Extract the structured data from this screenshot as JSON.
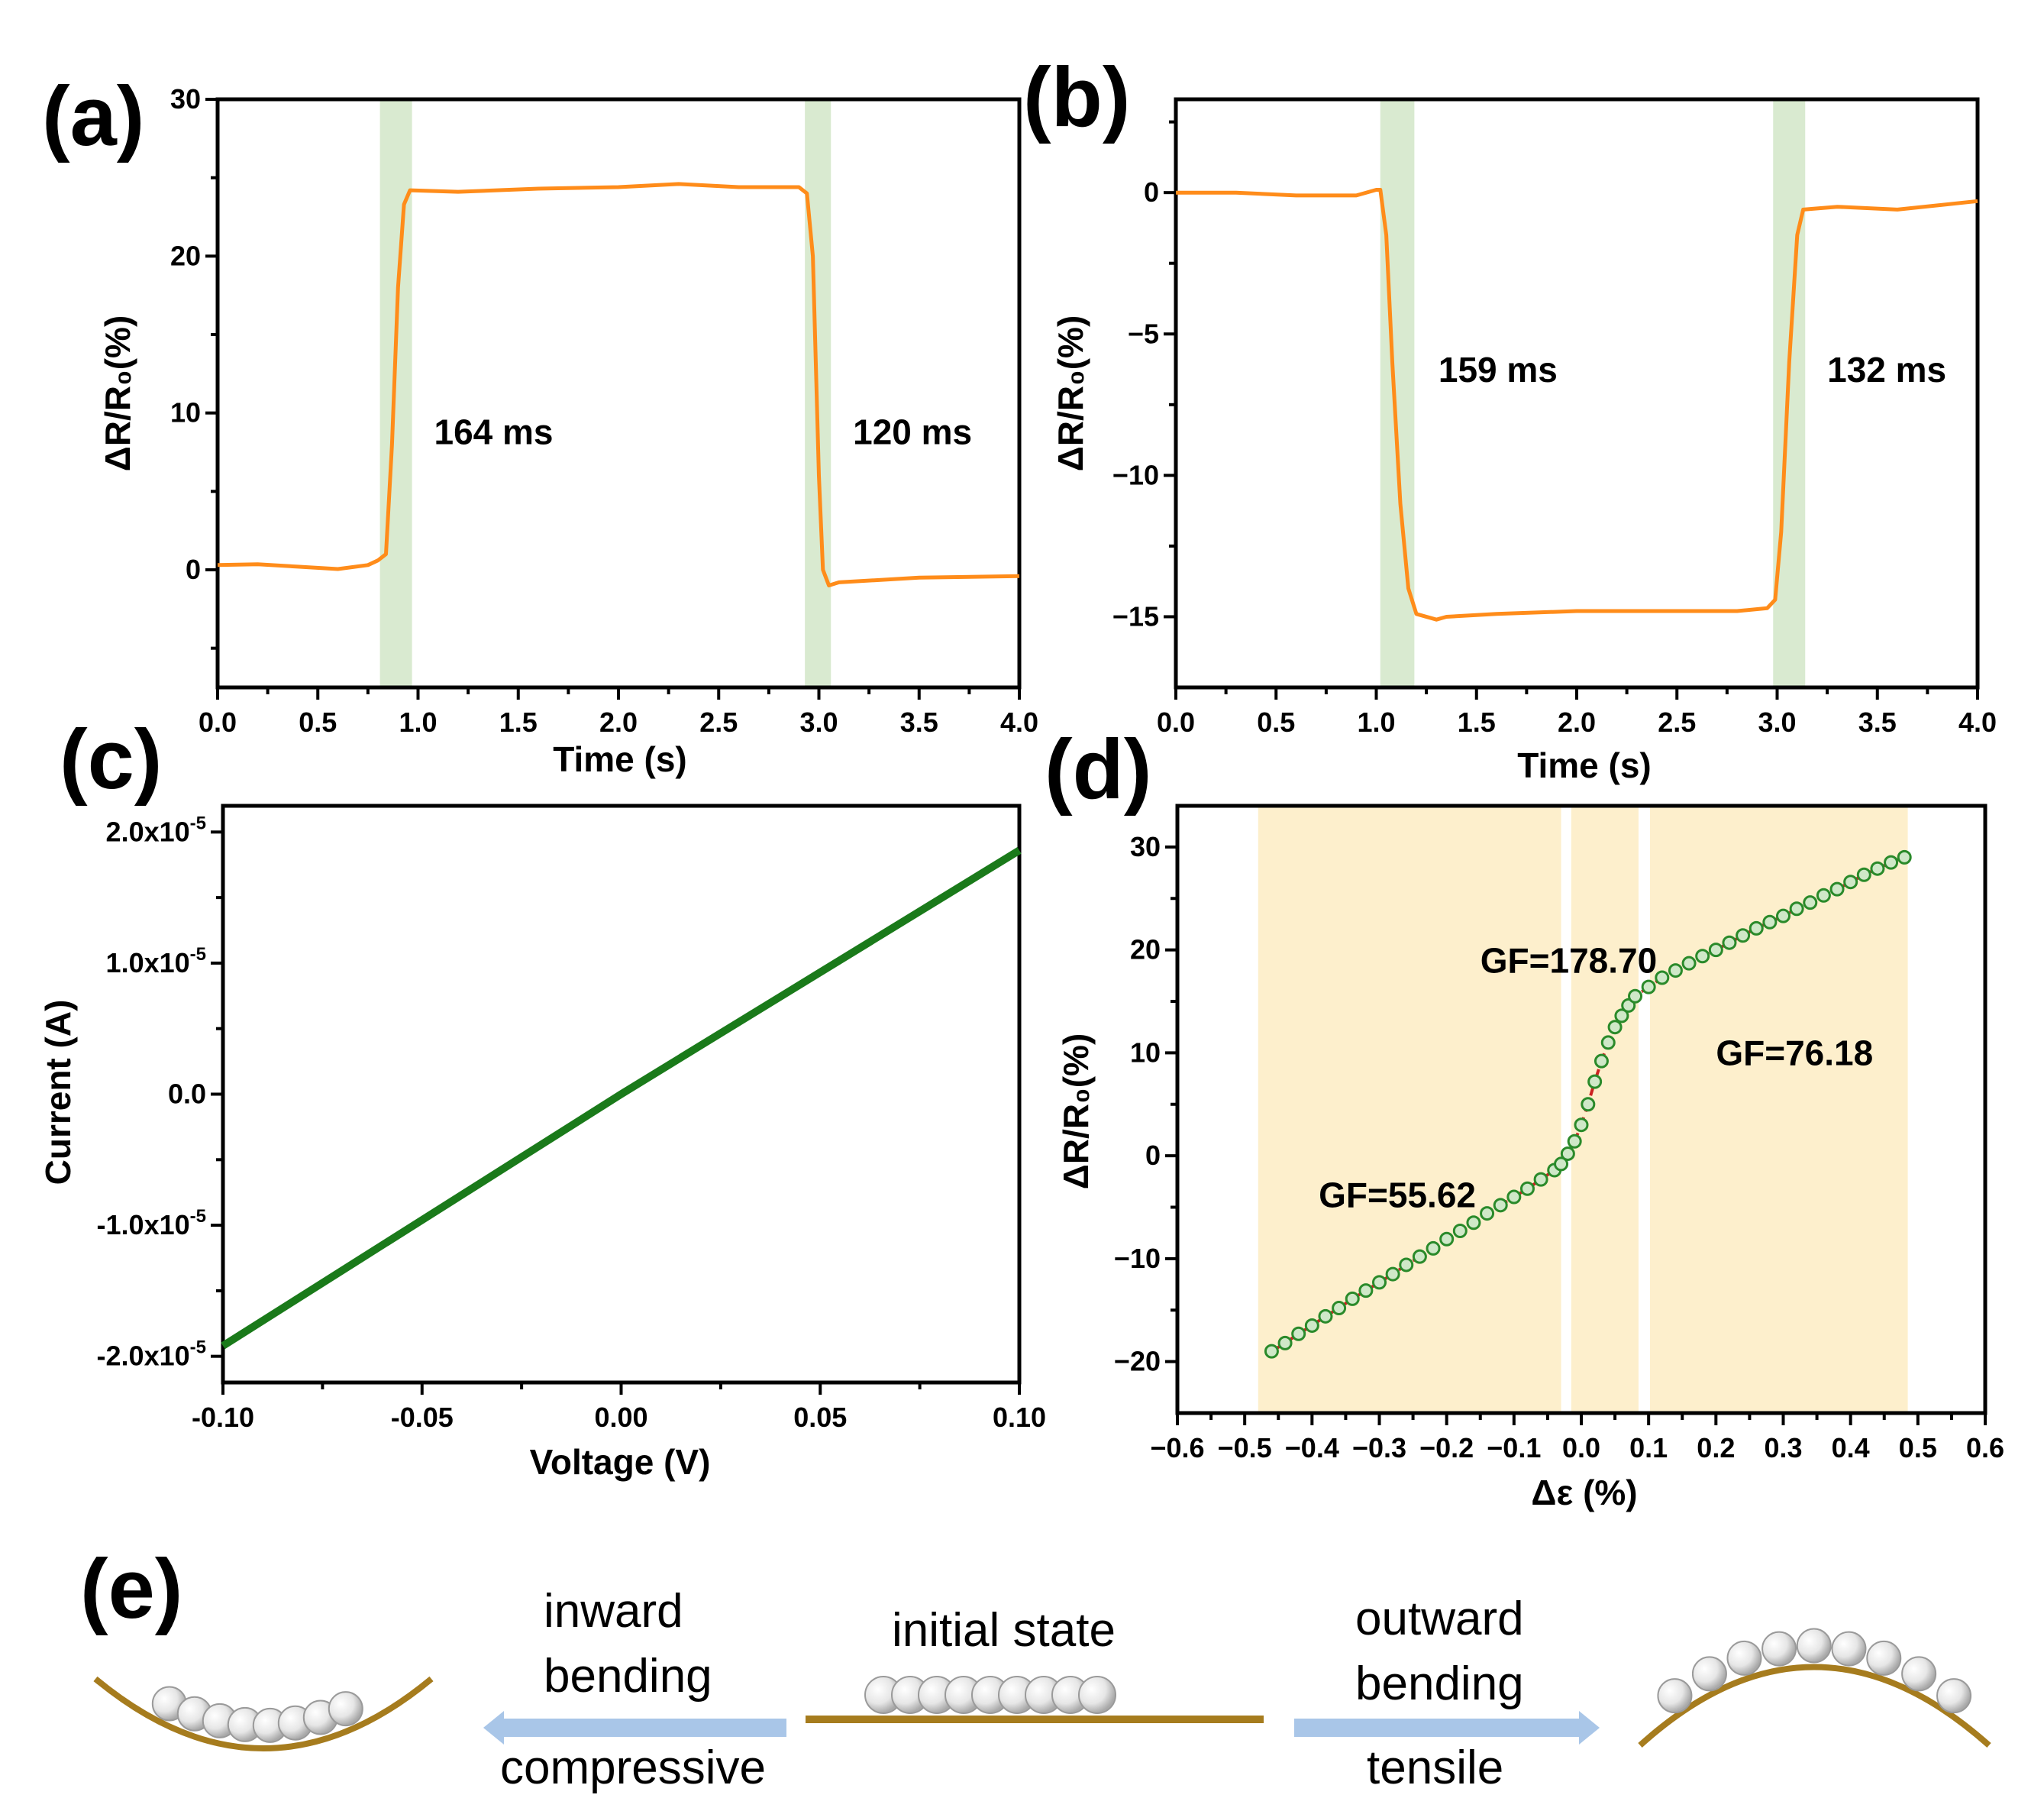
{
  "chart_data": [
    {
      "id": "a",
      "panel_label": "(a)",
      "type": "line",
      "xlabel": "Time (s)",
      "ylabel": "ΔR/R₀(%)",
      "xlim": [
        0,
        4
      ],
      "ylim": [
        -7.5,
        30
      ],
      "xticks": [
        "0.0",
        "0.5",
        "1.0",
        "1.5",
        "2.0",
        "2.5",
        "3.0",
        "3.5",
        "4.0"
      ],
      "yticks": [
        "0",
        "10",
        "20",
        "30"
      ],
      "line_color": "#ff8c1a",
      "band_color": "#d9ead0",
      "bands": [
        [
          0.81,
          0.97
        ],
        [
          2.93,
          3.06
        ]
      ],
      "annotations": [
        {
          "text": "164 ms",
          "x": 1.08,
          "y": 8.0
        },
        {
          "text": "120 ms",
          "x": 3.17,
          "y": 8.0
        }
      ],
      "series": [
        {
          "name": "response",
          "points": [
            [
              0.0,
              0.3
            ],
            [
              0.2,
              0.35
            ],
            [
              0.4,
              0.2
            ],
            [
              0.6,
              0.05
            ],
            [
              0.75,
              0.3
            ],
            [
              0.8,
              0.6
            ],
            [
              0.84,
              1.0
            ],
            [
              0.87,
              8
            ],
            [
              0.9,
              18
            ],
            [
              0.93,
              23.3
            ],
            [
              0.96,
              24.2
            ],
            [
              1.2,
              24.1
            ],
            [
              1.6,
              24.3
            ],
            [
              2.0,
              24.4
            ],
            [
              2.3,
              24.6
            ],
            [
              2.6,
              24.4
            ],
            [
              2.9,
              24.4
            ],
            [
              2.94,
              24.0
            ],
            [
              2.97,
              20
            ],
            [
              3.0,
              6
            ],
            [
              3.02,
              0
            ],
            [
              3.05,
              -1.0
            ],
            [
              3.1,
              -0.8
            ],
            [
              3.5,
              -0.5
            ],
            [
              4.0,
              -0.4
            ]
          ]
        }
      ]
    },
    {
      "id": "b",
      "panel_label": "(b)",
      "type": "line",
      "xlabel": "Time (s)",
      "ylabel": "ΔR/R₀(%)",
      "xlim": [
        0,
        4
      ],
      "ylim": [
        -17.5,
        3.3
      ],
      "xticks": [
        "0.0",
        "0.5",
        "1.0",
        "1.5",
        "2.0",
        "2.5",
        "3.0",
        "3.5",
        "4.0"
      ],
      "yticks": [
        "0",
        "−5",
        "−10",
        "−15"
      ],
      "line_color": "#ff8c1a",
      "band_color": "#d9ead0",
      "bands": [
        [
          1.02,
          1.19
        ],
        [
          2.98,
          3.14
        ]
      ],
      "annotations": [
        {
          "text": "159 ms",
          "x": 1.31,
          "y": -6.7
        },
        {
          "text": "132 ms",
          "x": 3.25,
          "y": -6.7
        }
      ],
      "series": [
        {
          "name": "response",
          "points": [
            [
              0.0,
              0.0
            ],
            [
              0.3,
              0.0
            ],
            [
              0.6,
              -0.1
            ],
            [
              0.9,
              -0.1
            ],
            [
              1.0,
              0.1
            ],
            [
              1.02,
              0.1
            ],
            [
              1.05,
              -1.5
            ],
            [
              1.08,
              -6
            ],
            [
              1.12,
              -11
            ],
            [
              1.16,
              -14
            ],
            [
              1.2,
              -14.9
            ],
            [
              1.3,
              -15.1
            ],
            [
              1.35,
              -15.0
            ],
            [
              1.6,
              -14.9
            ],
            [
              2.0,
              -14.8
            ],
            [
              2.4,
              -14.8
            ],
            [
              2.8,
              -14.8
            ],
            [
              2.95,
              -14.7
            ],
            [
              2.99,
              -14.4
            ],
            [
              3.02,
              -12
            ],
            [
              3.06,
              -6
            ],
            [
              3.1,
              -1.5
            ],
            [
              3.13,
              -0.6
            ],
            [
              3.3,
              -0.5
            ],
            [
              3.6,
              -0.6
            ],
            [
              4.0,
              -0.3
            ]
          ]
        }
      ]
    },
    {
      "id": "c",
      "panel_label": "(c)",
      "type": "line",
      "xlabel": "Voltage (V)",
      "ylabel": "Current (A)",
      "xlim": [
        -0.1,
        0.1
      ],
      "ylim": [
        -2.2,
        2.2
      ],
      "y_unit_note": "values in units of 1e-5 A",
      "xticks": [
        "-0.10",
        "-0.05",
        "0.00",
        "0.05",
        "0.10"
      ],
      "ytick_mantissas": [
        "-2.0x10",
        "-1.0x10",
        "0.0",
        "1.0x10",
        "2.0x10"
      ],
      "ytick_exponent": "-5",
      "line_color": "#1a7a1a",
      "series": [
        {
          "name": "I-V",
          "points": [
            [
              -0.1,
              -1.92
            ],
            [
              0.0,
              0.0
            ],
            [
              0.1,
              1.86
            ]
          ]
        }
      ]
    },
    {
      "id": "d",
      "panel_label": "(d)",
      "type": "scatter",
      "xlabel": "Δε (%)",
      "ylabel": "ΔR/R₀(%)",
      "xlim": [
        -0.6,
        0.6
      ],
      "ylim": [
        -25,
        34
      ],
      "xticks": [
        "−0.6",
        "−0.5",
        "−0.4",
        "−0.3",
        "−0.2",
        "−0.1",
        "0.0",
        "0.1",
        "0.2",
        "0.3",
        "0.4",
        "0.5",
        "0.6"
      ],
      "yticks": [
        "−20",
        "−10",
        "0",
        "10",
        "20",
        "30"
      ],
      "band_color": "#fdefcc",
      "bands": [
        [
          -0.48,
          -0.03
        ],
        [
          -0.015,
          0.085
        ],
        [
          0.102,
          0.485
        ]
      ],
      "marker_color": "#2a8a2a",
      "fit_color": "#cc2222",
      "annotations": [
        {
          "text": "GF=55.62",
          "x": -0.39,
          "y": -5.0
        },
        {
          "text": "GF=178.70",
          "x": -0.15,
          "y": 17.8
        },
        {
          "text": "GF=76.18",
          "x": 0.2,
          "y": 8.8
        }
      ],
      "series": [
        {
          "name": "data",
          "points": [
            [
              -0.46,
              -19.0
            ],
            [
              -0.44,
              -18.2
            ],
            [
              -0.42,
              -17.3
            ],
            [
              -0.4,
              -16.5
            ],
            [
              -0.38,
              -15.6
            ],
            [
              -0.36,
              -14.8
            ],
            [
              -0.34,
              -13.9
            ],
            [
              -0.32,
              -13.1
            ],
            [
              -0.3,
              -12.3
            ],
            [
              -0.28,
              -11.5
            ],
            [
              -0.26,
              -10.6
            ],
            [
              -0.24,
              -9.8
            ],
            [
              -0.22,
              -9.0
            ],
            [
              -0.2,
              -8.1
            ],
            [
              -0.18,
              -7.3
            ],
            [
              -0.16,
              -6.5
            ],
            [
              -0.14,
              -5.6
            ],
            [
              -0.12,
              -4.8
            ],
            [
              -0.1,
              -4.0
            ],
            [
              -0.08,
              -3.2
            ],
            [
              -0.06,
              -2.3
            ],
            [
              -0.04,
              -1.4
            ],
            [
              -0.03,
              -0.8
            ],
            [
              -0.02,
              0.2
            ],
            [
              -0.01,
              1.4
            ],
            [
              0.0,
              3.0
            ],
            [
              0.01,
              5.0
            ],
            [
              0.02,
              7.2
            ],
            [
              0.03,
              9.2
            ],
            [
              0.04,
              11.0
            ],
            [
              0.05,
              12.5
            ],
            [
              0.06,
              13.6
            ],
            [
              0.07,
              14.6
            ],
            [
              0.08,
              15.5
            ],
            [
              0.1,
              16.4
            ],
            [
              0.12,
              17.3
            ],
            [
              0.14,
              18.0
            ],
            [
              0.16,
              18.7
            ],
            [
              0.18,
              19.4
            ],
            [
              0.2,
              20.0
            ],
            [
              0.22,
              20.7
            ],
            [
              0.24,
              21.4
            ],
            [
              0.26,
              22.1
            ],
            [
              0.28,
              22.7
            ],
            [
              0.3,
              23.3
            ],
            [
              0.32,
              24.0
            ],
            [
              0.34,
              24.6
            ],
            [
              0.36,
              25.3
            ],
            [
              0.38,
              25.9
            ],
            [
              0.4,
              26.6
            ],
            [
              0.42,
              27.3
            ],
            [
              0.44,
              27.9
            ],
            [
              0.46,
              28.5
            ],
            [
              0.48,
              29.0
            ]
          ]
        }
      ]
    }
  ],
  "schematic": {
    "panel_label": "(e)",
    "initial_state": "initial state",
    "inward_line1": "inward",
    "inward_line2": "bending",
    "compressive": "compressive",
    "outward_line1": "outward",
    "outward_line2": "bending",
    "tensile": "tensile",
    "substrate_color": "#a67c1e",
    "arrow_color": "#a9c6e8",
    "ball_count": 9
  }
}
